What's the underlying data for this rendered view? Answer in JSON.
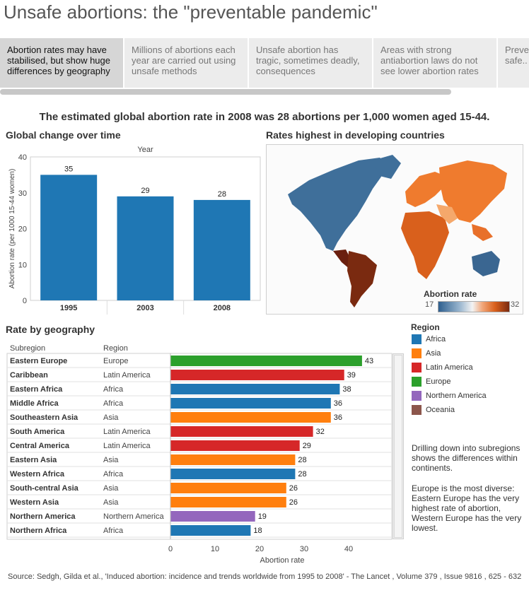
{
  "page_title": "Unsafe abortions: the \"preventable pandemic\"",
  "tabs": [
    {
      "label": "Abortion rates may have stabilised, but show huge differences by geography",
      "active": true
    },
    {
      "label": "Millions of abortions each year are carried out using unsafe methods",
      "active": false
    },
    {
      "label": "Unsafe abortion has tragic, sometimes deadly, consequences",
      "active": false
    },
    {
      "label": "Areas with strong antiabortion laws do not see lower abortion rates",
      "active": false
    },
    {
      "label": "Preventing safe..",
      "active": false
    }
  ],
  "headline": "The estimated global abortion rate in 2008 was 28 abortions per 1,000 women aged 15-44.",
  "map": {
    "title": "Rates highest in developing countries",
    "legend_title": "Abortion rate",
    "legend_min": "17",
    "legend_max": "32",
    "colors": {
      "low": "#2e5f8f",
      "mid": "#f3f3f3",
      "high": "#7a2a10",
      "orange": "#ef7b2e",
      "light_orange": "#f5a86b",
      "dark_orange": "#d9601c"
    }
  },
  "region_legend": {
    "title": "Region",
    "items": [
      {
        "label": "Africa",
        "color": "#1f77b4"
      },
      {
        "label": "Asia",
        "color": "#ff7f0e"
      },
      {
        "label": "Latin America",
        "color": "#d62728"
      },
      {
        "label": "Europe",
        "color": "#2ca02c"
      },
      {
        "label": "Northern America",
        "color": "#9467bd"
      },
      {
        "label": "Oceania",
        "color": "#8c564b"
      }
    ]
  },
  "notes": {
    "note1": "Drilling down into subregions shows the differences within continents.",
    "note2": "Europe is the most diverse: Eastern Europe has the very highest rate of abortion, Western Europe has the very lowest."
  },
  "source": "Source: Sedgh, Gilda et al., 'Induced abortion: incidence and trends worldwide from 1995 to 2008' - The Lancet , Volume 379 , Issue 9816 , 625 - 632",
  "chart_data": [
    {
      "type": "bar",
      "title": "Global change over time",
      "xlabel": "Year",
      "ylabel": "Abortion rate (per 1000 15-44 women)",
      "categories": [
        "1995",
        "2003",
        "2008"
      ],
      "values": [
        35,
        29,
        28
      ],
      "ylim": [
        0,
        40
      ],
      "yticks": [
        0,
        10,
        20,
        30,
        40
      ],
      "color": "#1f77b4"
    },
    {
      "type": "bar",
      "orientation": "horizontal",
      "title": "Rate by geography",
      "col_headers": {
        "subregion": "Subregion",
        "region": "Region"
      },
      "xlabel": "Abortion rate",
      "xlim": [
        0,
        45
      ],
      "xticks": [
        0,
        10,
        20,
        30,
        40
      ],
      "rows": [
        {
          "subregion": "Eastern Europe",
          "region": "Europe",
          "value": 43
        },
        {
          "subregion": "Caribbean",
          "region": "Latin America",
          "value": 39
        },
        {
          "subregion": "Eastern Africa",
          "region": "Africa",
          "value": 38
        },
        {
          "subregion": "Middle Africa",
          "region": "Africa",
          "value": 36
        },
        {
          "subregion": "Southeastern Asia",
          "region": "Asia",
          "value": 36
        },
        {
          "subregion": "South America",
          "region": "Latin America",
          "value": 32
        },
        {
          "subregion": "Central America",
          "region": "Latin America",
          "value": 29
        },
        {
          "subregion": "Eastern Asia",
          "region": "Asia",
          "value": 28
        },
        {
          "subregion": "Western Africa",
          "region": "Africa",
          "value": 28
        },
        {
          "subregion": "South-central Asia",
          "region": "Asia",
          "value": 26
        },
        {
          "subregion": "Western Asia",
          "region": "Asia",
          "value": 26
        },
        {
          "subregion": "Northern America",
          "region": "Northern America",
          "value": 19
        },
        {
          "subregion": "Northern Africa",
          "region": "Africa",
          "value": 18
        }
      ]
    }
  ]
}
